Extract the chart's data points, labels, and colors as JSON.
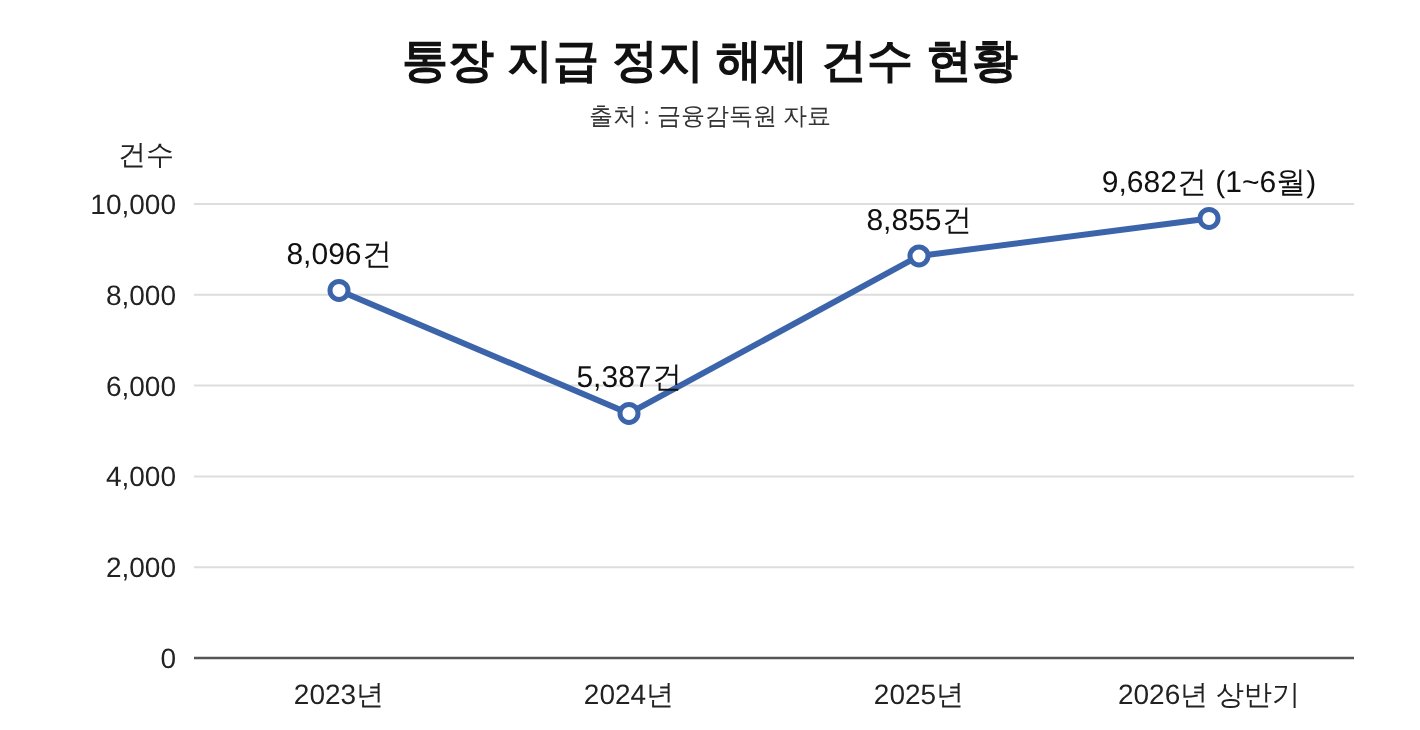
{
  "chart_data": {
    "type": "line",
    "title": "통장 지급 정지 해제 건수 현황",
    "subtitle": "출처 : 금융감독원 자료",
    "ylabel": "건수",
    "categories": [
      "2023년",
      "2024년",
      "2025년",
      "2026년 상반기"
    ],
    "series": [
      {
        "color": "#3b64ab",
        "values": [
          8096,
          5387,
          8855,
          9682
        ],
        "value_labels": [
          "8,096건",
          "5,387건",
          "8,855건",
          "9,682건 (1~6월)"
        ]
      }
    ],
    "ylim": [
      0,
      10000
    ],
    "yticks": [
      {
        "value": 0,
        "label": "0"
      },
      {
        "value": 2000,
        "label": "2,000"
      },
      {
        "value": 4000,
        "label": "4,000"
      },
      {
        "value": 6000,
        "label": "6,000"
      },
      {
        "value": 8000,
        "label": "8,000"
      },
      {
        "value": 10000,
        "label": "10,000"
      }
    ],
    "grid": "y",
    "marker": "circle",
    "line_style": "solid"
  }
}
